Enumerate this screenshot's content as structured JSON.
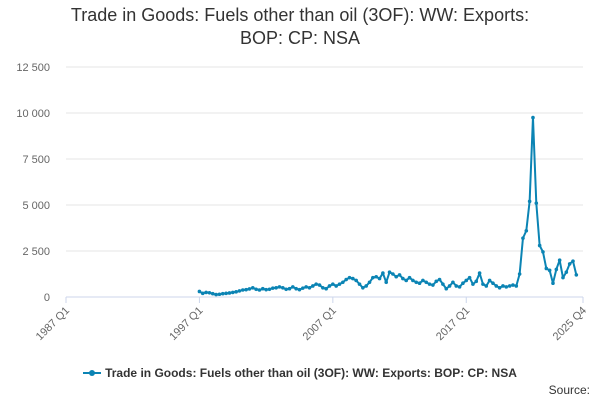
{
  "title_lines": [
    "Trade in Goods: Fuels other than oil (3OF): WW: Exports:",
    "BOP: CP: NSA"
  ],
  "source_label": "Source:",
  "colors": {
    "series": "#0b84b4",
    "grid": "#e6e6e6",
    "axis_text": "#666666"
  },
  "chart_data": {
    "type": "line",
    "title": "Trade in Goods: Fuels other than oil (3OF): WW: Exports: BOP: CP: NSA",
    "xlabel": "",
    "ylabel": "",
    "xlim": [
      "1987 Q1",
      "2025 Q4"
    ],
    "ylim": [
      0,
      12500
    ],
    "y_ticks": [
      0,
      2500,
      5000,
      7500,
      10000,
      12500
    ],
    "y_tick_labels": [
      "0",
      "2 500",
      "5 000",
      "7 500",
      "10 000",
      "12 500"
    ],
    "x_tick_labels": [
      "1987 Q1",
      "1997 Q1",
      "2007 Q1",
      "2017 Q1",
      "2025 Q4"
    ],
    "grid": true,
    "legend_position": "bottom-center",
    "series": [
      {
        "name": "Trade in Goods: Fuels other than oil (3OF): WW: Exports: BOP: CP: NSA",
        "points": [
          [
            "1997 Q1",
            300
          ],
          [
            "1997 Q2",
            200
          ],
          [
            "1997 Q3",
            250
          ],
          [
            "1997 Q4",
            230
          ],
          [
            "1998 Q1",
            180
          ],
          [
            "1998 Q2",
            130
          ],
          [
            "1998 Q3",
            150
          ],
          [
            "1998 Q4",
            180
          ],
          [
            "1999 Q1",
            200
          ],
          [
            "1999 Q2",
            220
          ],
          [
            "1999 Q3",
            250
          ],
          [
            "1999 Q4",
            280
          ],
          [
            "2000 Q1",
            330
          ],
          [
            "2000 Q2",
            380
          ],
          [
            "2000 Q3",
            400
          ],
          [
            "2000 Q4",
            440
          ],
          [
            "2001 Q1",
            500
          ],
          [
            "2001 Q2",
            420
          ],
          [
            "2001 Q3",
            380
          ],
          [
            "2001 Q4",
            450
          ],
          [
            "2002 Q1",
            400
          ],
          [
            "2002 Q2",
            420
          ],
          [
            "2002 Q3",
            480
          ],
          [
            "2002 Q4",
            500
          ],
          [
            "2003 Q1",
            550
          ],
          [
            "2003 Q2",
            500
          ],
          [
            "2003 Q3",
            420
          ],
          [
            "2003 Q4",
            450
          ],
          [
            "2004 Q1",
            550
          ],
          [
            "2004 Q2",
            450
          ],
          [
            "2004 Q3",
            400
          ],
          [
            "2004 Q4",
            480
          ],
          [
            "2005 Q1",
            550
          ],
          [
            "2005 Q2",
            500
          ],
          [
            "2005 Q3",
            600
          ],
          [
            "2005 Q4",
            700
          ],
          [
            "2006 Q1",
            650
          ],
          [
            "2006 Q2",
            500
          ],
          [
            "2006 Q3",
            450
          ],
          [
            "2006 Q4",
            600
          ],
          [
            "2007 Q1",
            700
          ],
          [
            "2007 Q2",
            600
          ],
          [
            "2007 Q3",
            700
          ],
          [
            "2007 Q4",
            800
          ],
          [
            "2008 Q1",
            950
          ],
          [
            "2008 Q2",
            1050
          ],
          [
            "2008 Q3",
            1000
          ],
          [
            "2008 Q4",
            900
          ],
          [
            "2009 Q1",
            700
          ],
          [
            "2009 Q2",
            500
          ],
          [
            "2009 Q3",
            600
          ],
          [
            "2009 Q4",
            800
          ],
          [
            "2010 Q1",
            1050
          ],
          [
            "2010 Q2",
            1100
          ],
          [
            "2010 Q3",
            1000
          ],
          [
            "2010 Q4",
            1300
          ],
          [
            "2011 Q1",
            800
          ],
          [
            "2011 Q2",
            1350
          ],
          [
            "2011 Q3",
            1250
          ],
          [
            "2011 Q4",
            1100
          ],
          [
            "2012 Q1",
            1200
          ],
          [
            "2012 Q2",
            1000
          ],
          [
            "2012 Q3",
            900
          ],
          [
            "2012 Q4",
            1050
          ],
          [
            "2013 Q1",
            900
          ],
          [
            "2013 Q2",
            800
          ],
          [
            "2013 Q3",
            750
          ],
          [
            "2013 Q4",
            900
          ],
          [
            "2014 Q1",
            800
          ],
          [
            "2014 Q2",
            700
          ],
          [
            "2014 Q3",
            650
          ],
          [
            "2014 Q4",
            850
          ],
          [
            "2015 Q1",
            950
          ],
          [
            "2015 Q2",
            700
          ],
          [
            "2015 Q3",
            450
          ],
          [
            "2015 Q4",
            600
          ],
          [
            "2016 Q1",
            800
          ],
          [
            "2016 Q2",
            600
          ],
          [
            "2016 Q3",
            550
          ],
          [
            "2016 Q4",
            750
          ],
          [
            "2017 Q1",
            900
          ],
          [
            "2017 Q2",
            1050
          ],
          [
            "2017 Q3",
            700
          ],
          [
            "2017 Q4",
            850
          ],
          [
            "2018 Q1",
            1300
          ],
          [
            "2018 Q2",
            700
          ],
          [
            "2018 Q3",
            600
          ],
          [
            "2018 Q4",
            900
          ],
          [
            "2019 Q1",
            750
          ],
          [
            "2019 Q2",
            600
          ],
          [
            "2019 Q3",
            500
          ],
          [
            "2019 Q4",
            600
          ],
          [
            "2020 Q1",
            550
          ],
          [
            "2020 Q2",
            600
          ],
          [
            "2020 Q3",
            650
          ],
          [
            "2020 Q4",
            600
          ],
          [
            "2021 Q1",
            1250
          ],
          [
            "2021 Q2",
            3200
          ],
          [
            "2021 Q3",
            3600
          ],
          [
            "2021 Q4",
            5200
          ],
          [
            "2022 Q1",
            9750
          ],
          [
            "2022 Q2",
            5100
          ],
          [
            "2022 Q3",
            2800
          ],
          [
            "2022 Q4",
            2450
          ],
          [
            "2023 Q1",
            1550
          ],
          [
            "2023 Q2",
            1450
          ],
          [
            "2023 Q3",
            750
          ],
          [
            "2023 Q4",
            1500
          ],
          [
            "2024 Q1",
            2000
          ],
          [
            "2024 Q2",
            1050
          ],
          [
            "2024 Q3",
            1350
          ],
          [
            "2024 Q4",
            1800
          ],
          [
            "2025 Q1",
            1950
          ],
          [
            "2025 Q2",
            1200
          ]
        ]
      }
    ]
  }
}
